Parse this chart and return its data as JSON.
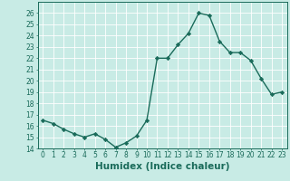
{
  "x": [
    0,
    1,
    2,
    3,
    4,
    5,
    6,
    7,
    8,
    9,
    10,
    11,
    12,
    13,
    14,
    15,
    16,
    17,
    18,
    19,
    20,
    21,
    22,
    23
  ],
  "y": [
    16.5,
    16.2,
    15.7,
    15.3,
    15.0,
    15.3,
    14.8,
    14.1,
    14.5,
    15.1,
    16.5,
    22.0,
    22.0,
    23.2,
    24.2,
    26.0,
    25.8,
    23.5,
    22.5,
    22.5,
    21.8,
    20.2,
    18.8,
    19.0
  ],
  "line_color": "#1a6b5a",
  "marker": "D",
  "markersize": 2.2,
  "bg_color": "#c8ebe5",
  "grid_color": "#ffffff",
  "xlabel": "Humidex (Indice chaleur)",
  "ylim": [
    14,
    27
  ],
  "xlim": [
    -0.5,
    23.5
  ],
  "yticks": [
    14,
    15,
    16,
    17,
    18,
    19,
    20,
    21,
    22,
    23,
    24,
    25,
    26
  ],
  "xticks": [
    0,
    1,
    2,
    3,
    4,
    5,
    6,
    7,
    8,
    9,
    10,
    11,
    12,
    13,
    14,
    15,
    16,
    17,
    18,
    19,
    20,
    21,
    22,
    23
  ],
  "tick_labelsize": 5.5,
  "xlabel_fontsize": 7.5,
  "linewidth": 1.0,
  "spine_color": "#1a6b5a"
}
